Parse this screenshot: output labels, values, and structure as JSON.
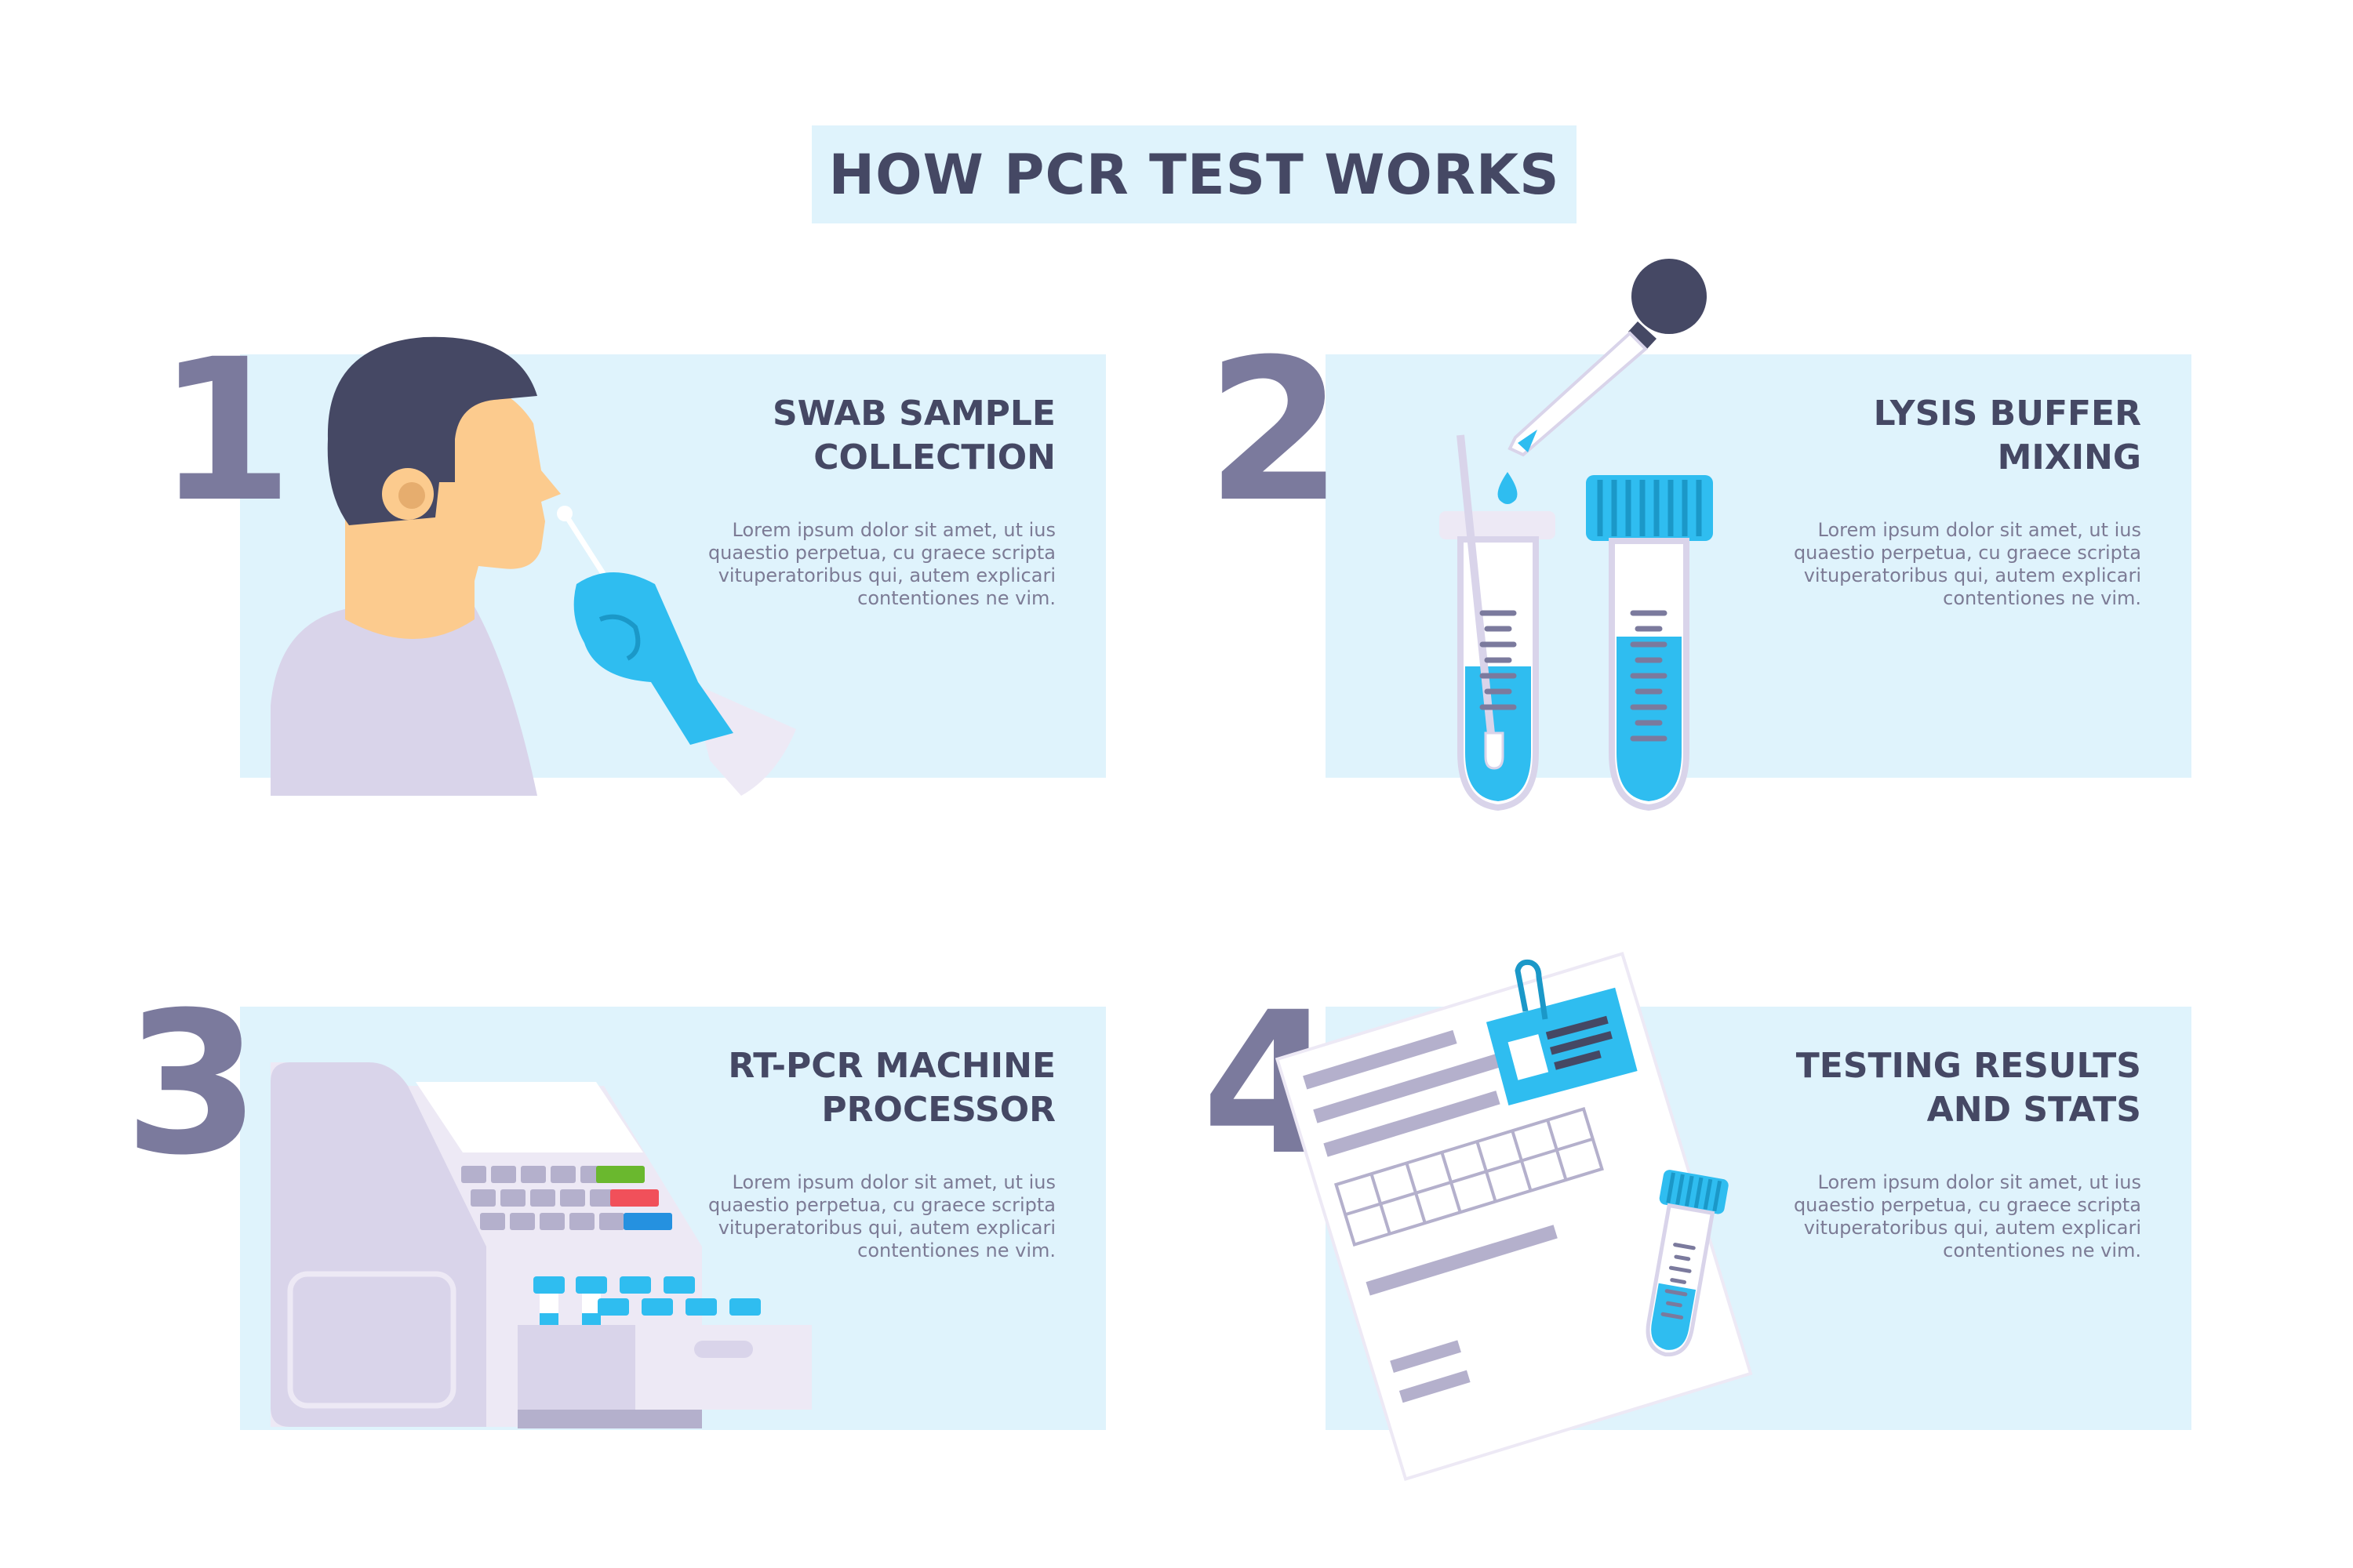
{
  "title": "HOW PCR TEST WORKS",
  "colors": {
    "card_bg": "#dff3fc",
    "heading": "#454864",
    "number": "#7b7a9d",
    "body_text": "#7c7b95",
    "accent_blue": "#2fbdf0",
    "lavender": "#d9d4ea"
  },
  "steps": [
    {
      "number": "1",
      "title": "SWAB SAMPLE\nCOLLECTION",
      "description": "Lorem ipsum dolor sit amet, ut ius\nquaestio perpetua, cu graece scripta\nvituperatoribus qui, autem explicari\ncontentiones ne vim.",
      "illustration": "person-swab-illustration"
    },
    {
      "number": "2",
      "title": "LYSIS BUFFER\nMIXING",
      "description": "Lorem ipsum dolor sit amet, ut ius\nquaestio perpetua, cu graece scripta\nvituperatoribus qui, autem explicari\ncontentiones ne vim.",
      "illustration": "test-tubes-dropper-illustration"
    },
    {
      "number": "3",
      "title": "RT-PCR MACHINE\nPROCESSOR",
      "description": "Lorem ipsum dolor sit amet, ut ius\nquaestio perpetua, cu graece scripta\nvituperatoribus qui, autem explicari\ncontentiones ne vim.",
      "illustration": "pcr-machine-illustration"
    },
    {
      "number": "4",
      "title": "TESTING RESULTS\nAND STATS",
      "description": "Lorem ipsum dolor sit amet, ut ius\nquaestio perpetua, cu graece scripta\nvituperatoribus qui, autem explicari\ncontentiones ne vim.",
      "illustration": "report-document-illustration"
    }
  ]
}
